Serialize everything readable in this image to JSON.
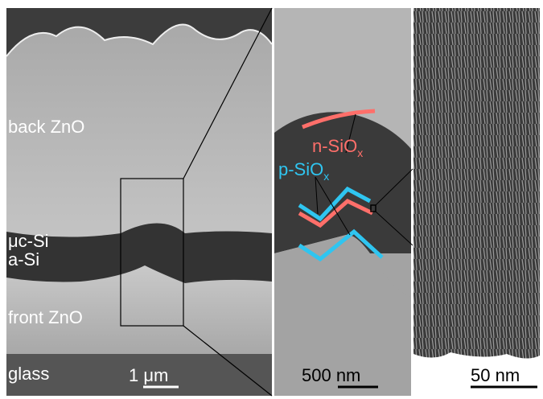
{
  "panels": [
    {
      "layers": [
        "back ZnO",
        "μc-Si",
        "a-Si",
        "front ZnO",
        "glass"
      ],
      "scale_bar": "1 μm"
    },
    {
      "annotations": [
        {
          "text": "n-SiO",
          "subscript": "x"
        },
        {
          "text": "p-SiO",
          "subscript": "x"
        }
      ],
      "scale_bar": "500 nm"
    },
    {
      "scale_bar": "50 nm"
    }
  ]
}
